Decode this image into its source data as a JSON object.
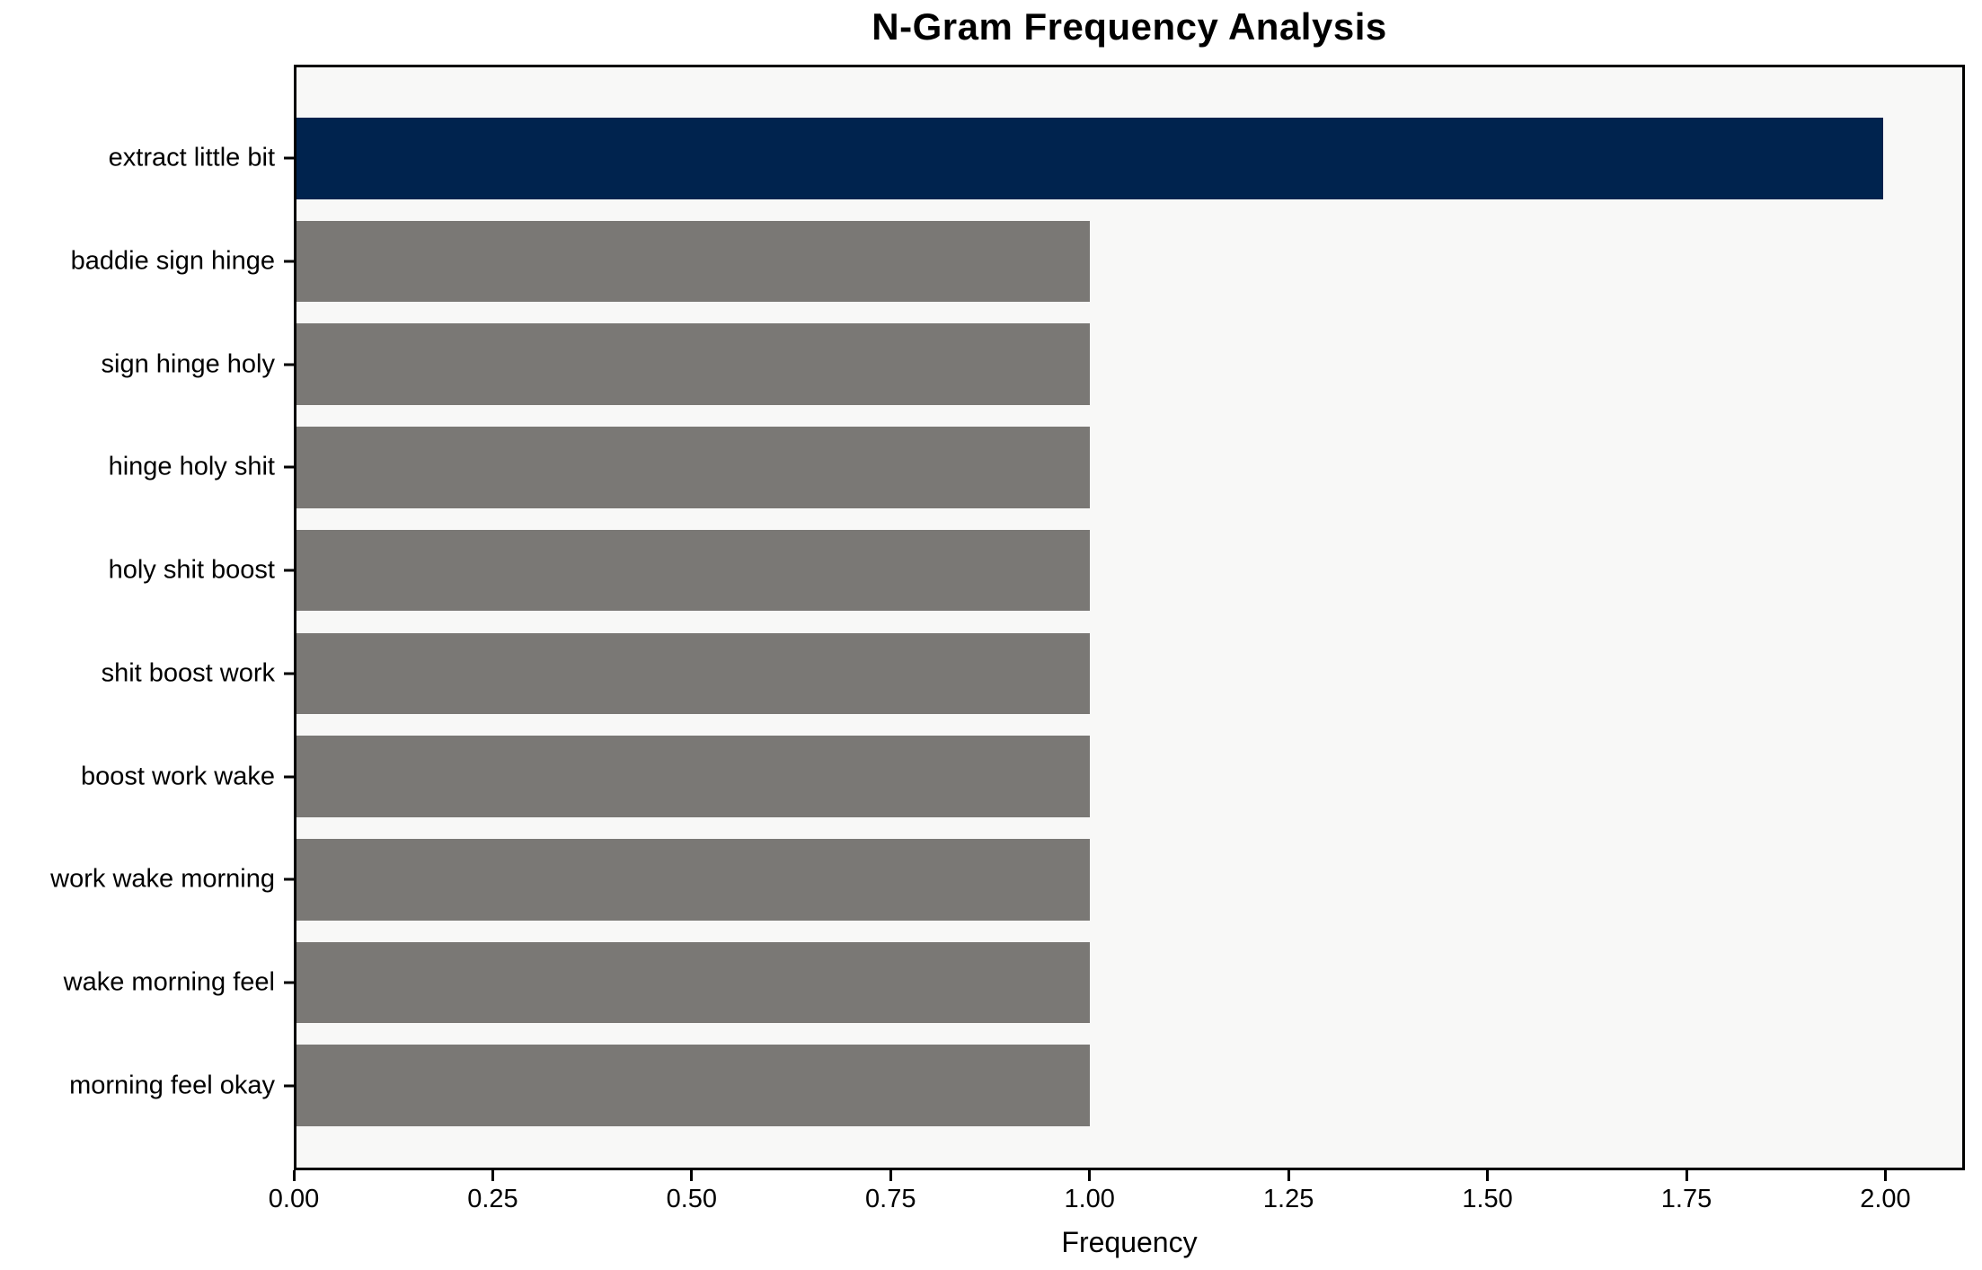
{
  "figure": {
    "title": "N-Gram Frequency Analysis",
    "background_color": "#ffffff",
    "plot_background_color": "#f8f8f7",
    "spine_color": "#000000"
  },
  "chart_data": {
    "type": "bar",
    "orientation": "horizontal",
    "title": "N-Gram Frequency Analysis",
    "xlabel": "Frequency",
    "ylabel": "",
    "categories": [
      "extract little bit",
      "baddie sign hinge",
      "sign hinge holy",
      "hinge holy shit",
      "holy shit boost",
      "shit boost work",
      "boost work wake",
      "work wake morning",
      "wake morning feel",
      "morning feel okay"
    ],
    "values": [
      2,
      1,
      1,
      1,
      1,
      1,
      1,
      1,
      1,
      1
    ],
    "xlim": [
      0,
      2.1
    ],
    "xtick_labels": [
      "0.00",
      "0.25",
      "0.50",
      "0.75",
      "1.00",
      "1.25",
      "1.50",
      "1.75",
      "2.00"
    ],
    "xtick_values": [
      0,
      0.25,
      0.5,
      0.75,
      1.0,
      1.25,
      1.5,
      1.75,
      2.0
    ],
    "grid": false,
    "legend": null,
    "highlight_index": 0,
    "colors": {
      "highlight_bar": "#00234e",
      "default_bar": "#7a7875"
    }
  }
}
